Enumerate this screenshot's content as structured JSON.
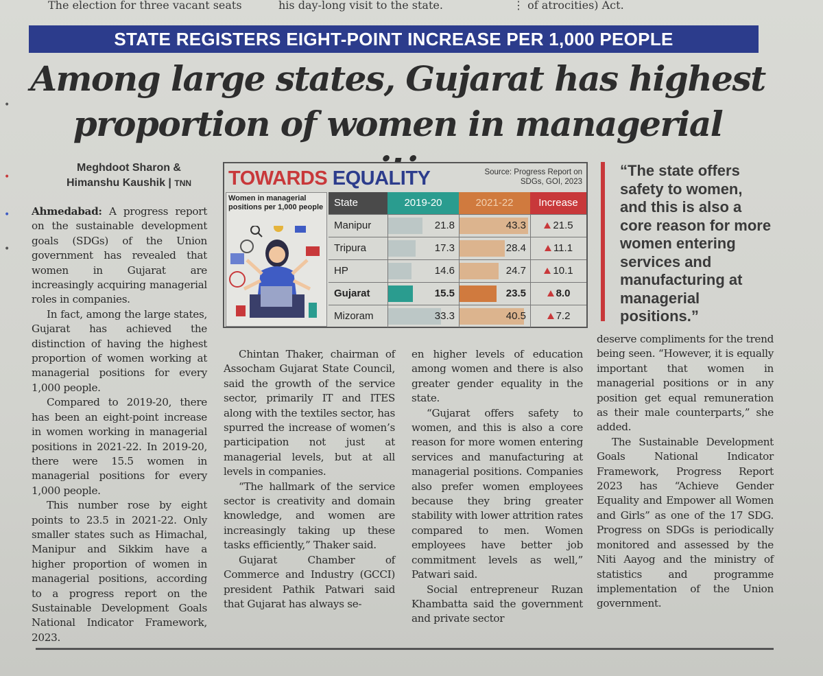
{
  "top_strip": {
    "left": "The election for three vacant seats",
    "middle": "his day-long visit to the state.",
    "right": "of atrocities) Act."
  },
  "kicker": "STATE REGISTERS EIGHT-POINT INCREASE PER 1,000 PEOPLE",
  "headline": {
    "line1": "Among large states, Gujarat has highest",
    "line2": "proportion of women in managerial positions"
  },
  "byline": {
    "author1": "Meghdoot Sharon &",
    "author2": "Himanshu Kaushik",
    "agency": "TNN"
  },
  "infographic": {
    "title_part1": "TOWARDS",
    "title_part2": "EQUALITY",
    "source": "Source: Progress Report on SDGs, GOI, 2023",
    "subtitle": "Women in managerial positions per 1,000 people",
    "headers": {
      "state": "State",
      "y1": "2019-20",
      "y2": "2021-22",
      "inc": "Increase"
    },
    "colors": {
      "teal": "#2a9c8f",
      "orange": "#d07a3e",
      "red": "#c8383a"
    },
    "rows": [
      {
        "state": "Manipur",
        "y1": "21.8",
        "y2": "43.3",
        "inc": "21.5",
        "y1v": 21.8,
        "y2v": 43.3,
        "bold": false
      },
      {
        "state": "Tripura",
        "y1": "17.3",
        "y2": "28.4",
        "inc": "11.1",
        "y1v": 17.3,
        "y2v": 28.4,
        "bold": false
      },
      {
        "state": "HP",
        "y1": "14.6",
        "y2": "24.7",
        "inc": "10.1",
        "y1v": 14.6,
        "y2v": 24.7,
        "bold": false
      },
      {
        "state": "Gujarat",
        "y1": "15.5",
        "y2": "23.5",
        "inc": "8.0",
        "y1v": 15.5,
        "y2v": 23.5,
        "bold": true
      },
      {
        "state": "Mizoram",
        "y1": "33.3",
        "y2": "40.5",
        "inc": "7.2",
        "y1v": 33.3,
        "y2v": 40.5,
        "bold": false
      }
    ]
  },
  "pull_quote": "“The state offers safety to women, and this is also a core reason for more women entering services and manufacturing at managerial positions.”",
  "body": {
    "col1": {
      "dateline": "Ahmedabad:",
      "p1": "A progress report on the sustainable development goals (SDGs) of the Union government has revealed that women in Gujarat are increasingly acquiring managerial roles in companies.",
      "p2": "In fact, among the large states, Gujarat has achieved the distinction of having the highest proportion of women working at managerial positions for every 1,000 people.",
      "p3": "Compared to 2019-20, there has been an eight-point increase in women working in managerial positions in 2021-22. In 2019-20, there were 15.5 women in managerial positions for every 1,000 people.",
      "p4": "This number rose by eight points to 23.5 in 2021-22. Only smaller states such as Himachal, Manipur and Sikkim have a higher proportion of women in managerial positions, according to a progress report on the Sustainable Development Goals National Indicator Framework, 2023."
    },
    "col2": {
      "p1": "Chintan Thaker, chairman of Assocham Gujarat State Council, said the growth of the service sector, primarily IT and ITES along with the textiles sector, has spurred the increase of women’s participation not just at managerial levels, but at all levels in companies.",
      "p2": "“The hallmark of the service sector is creativity and domain knowledge, and women are increasingly taking up these tasks efficiently,” Thaker said.",
      "p3": "Gujarat Chamber of Commerce and Industry (GCCI) president Pathik Patwari said that Gujarat has always se-"
    },
    "col3": {
      "p1": "en higher levels of education among women and there is also greater gender equality in the state.",
      "p2": "“Gujarat offers safety to women, and this is also a core reason for more women entering services and manufacturing at managerial positions. Companies also prefer women employees because they bring greater stability with lower attrition rates compared to men. Women employees have better job commitment levels as well,” Patwari said.",
      "p3": "Social entrepreneur Ruzan Khambatta said the government and private sector"
    },
    "col4": {
      "p1": "deserve compliments for the trend being seen. “However, it is equally important that women in managerial positions or in any position get equal remuneration as their male counterparts,” she added.",
      "p2": "The Sustainable Development Goals National Indicator Framework, Progress Report 2023 has “Achieve Gender Equality and Empower all Women and Girls” as one of the 17 SDG. Progress on SDGs is periodically monitored and assessed by the Niti Aayog and the ministry of statistics and programme implementation of the Union government."
    }
  }
}
